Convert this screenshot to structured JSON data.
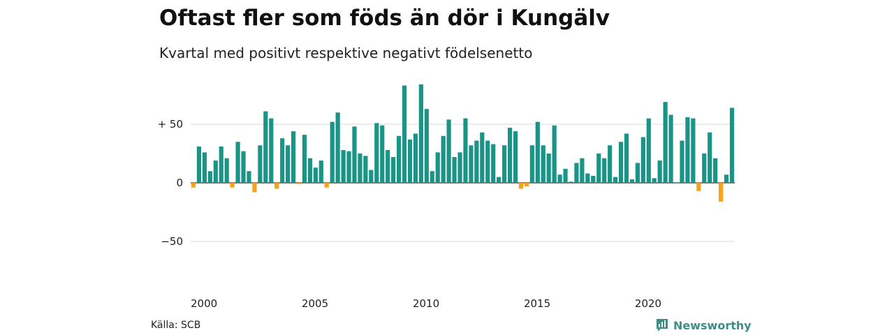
{
  "chart_data": {
    "type": "bar",
    "title": "Oftast fler som föds än dör i Kungälv",
    "subtitle": "Kvartal med positivt respektive negativt födelsenetto",
    "x_start": 2000,
    "x_end": 2024.75,
    "xticks": [
      {
        "value": 2000,
        "label": "2000"
      },
      {
        "value": 2005,
        "label": "2005"
      },
      {
        "value": 2010,
        "label": "2010"
      },
      {
        "value": 2015,
        "label": "2015"
      },
      {
        "value": 2020,
        "label": "2020"
      }
    ],
    "yticks": [
      {
        "value": 50,
        "label": "+ 50"
      },
      {
        "value": 0,
        "label": "0"
      },
      {
        "value": -50,
        "label": "−50"
      }
    ],
    "ylim": [
      -80,
      85
    ],
    "grid": true,
    "positive_color": "#1b9488",
    "negative_color": "#f5a31a",
    "values": [
      -4,
      31,
      26,
      10,
      19,
      31,
      21,
      -4,
      35,
      27,
      10,
      -8,
      32,
      61,
      55,
      -5,
      38,
      32,
      44,
      -1,
      41,
      21,
      13,
      19,
      -4,
      52,
      60,
      28,
      27,
      48,
      25,
      23,
      11,
      51,
      49,
      28,
      22,
      40,
      83,
      37,
      42,
      84,
      63,
      10,
      26,
      40,
      54,
      22,
      26,
      55,
      32,
      36,
      43,
      36,
      33,
      5,
      32,
      47,
      44,
      -5,
      -3,
      32,
      52,
      32,
      25,
      49,
      7,
      12,
      1,
      17,
      21,
      8,
      6,
      25,
      21,
      32,
      5,
      35,
      42,
      3,
      17,
      39,
      55,
      4,
      19,
      69,
      58,
      0,
      36,
      56,
      55,
      -7,
      25,
      43,
      21,
      -16,
      7,
      64
    ]
  },
  "source": "Källa: SCB",
  "brand": {
    "name": "Newsworthy",
    "icon": "newsworthy-logo-icon",
    "color": "#3a8f88"
  }
}
